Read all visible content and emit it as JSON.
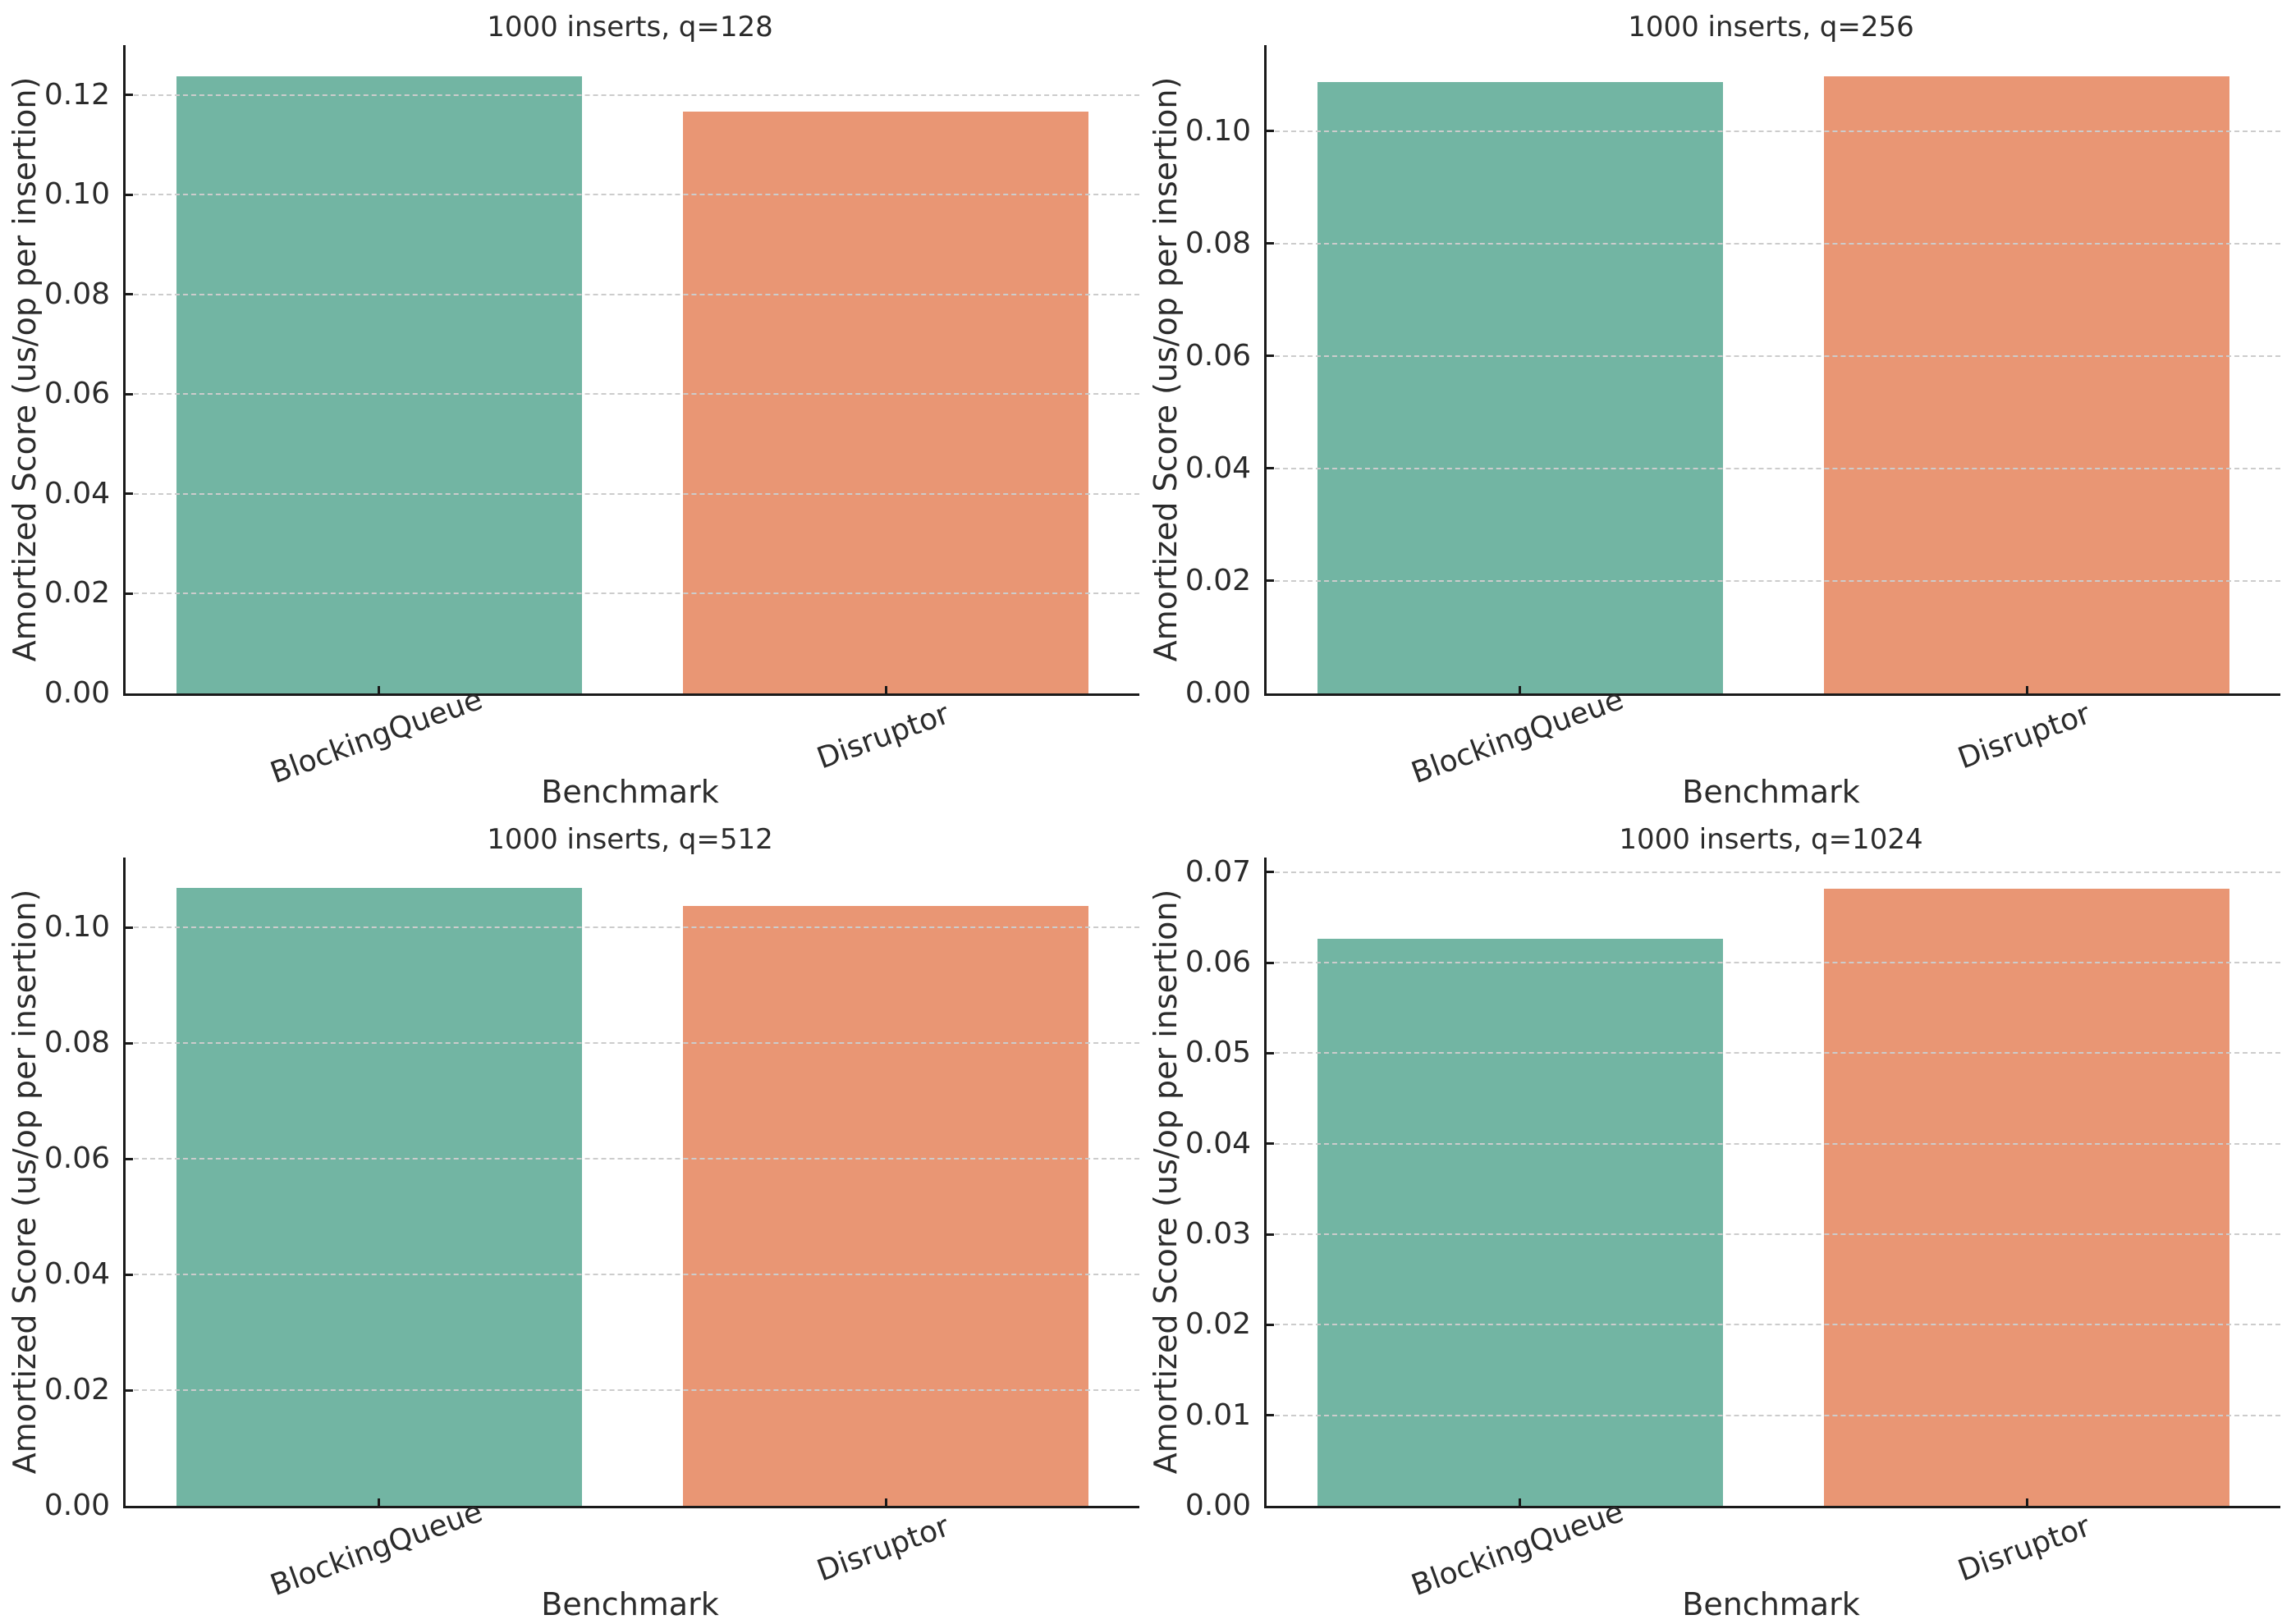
{
  "figure": {
    "background": "#ffffff",
    "layout": "2x2-grid-of-subplots"
  },
  "palette": {
    "series": [
      {
        "name": "BlockingQueue",
        "color": "#72b5a3"
      },
      {
        "name": "Disruptor",
        "color": "#e99674"
      }
    ],
    "grid": "#cccccc",
    "spine": "#1a1a1a",
    "text": "#2b2b2b"
  },
  "chart_data": [
    {
      "type": "bar",
      "title": "1000 inserts, q=128",
      "categories": [
        "BlockingQueue",
        "Disruptor"
      ],
      "values": [
        0.1238,
        0.1167
      ],
      "xlabel": "Benchmark",
      "ylabel": "Amortized Score (us/op per insertion)",
      "yticks": [
        0.0,
        0.02,
        0.04,
        0.06,
        0.08,
        0.1,
        0.12
      ],
      "ytick_labels": [
        "0.00",
        "0.02",
        "0.04",
        "0.06",
        "0.08",
        "0.10",
        "0.12"
      ],
      "ylim": [
        0,
        0.13
      ],
      "grid": "horizontal-dashed-above-bars",
      "legend": "none",
      "bar_width_fraction": 0.4,
      "xtick_rotation_deg": 20
    },
    {
      "type": "bar",
      "title": "1000 inserts, q=256",
      "categories": [
        "BlockingQueue",
        "Disruptor"
      ],
      "values": [
        0.1088,
        0.1098
      ],
      "xlabel": "Benchmark",
      "ylabel": "Amortized Score (us/op per insertion)",
      "yticks": [
        0.0,
        0.02,
        0.04,
        0.06,
        0.08,
        0.1
      ],
      "ytick_labels": [
        "0.00",
        "0.02",
        "0.04",
        "0.06",
        "0.08",
        "0.10"
      ],
      "ylim": [
        0,
        0.1153
      ],
      "grid": "horizontal-dashed-above-bars",
      "legend": "none",
      "bar_width_fraction": 0.4,
      "xtick_rotation_deg": 20
    },
    {
      "type": "bar",
      "title": "1000 inserts, q=512",
      "categories": [
        "BlockingQueue",
        "Disruptor"
      ],
      "values": [
        0.1068,
        0.1037
      ],
      "xlabel": "Benchmark",
      "ylabel": "Amortized Score (us/op per insertion)",
      "yticks": [
        0.0,
        0.02,
        0.04,
        0.06,
        0.08,
        0.1
      ],
      "ytick_labels": [
        "0.00",
        "0.02",
        "0.04",
        "0.06",
        "0.08",
        "0.10"
      ],
      "ylim": [
        0,
        0.1121
      ],
      "grid": "horizontal-dashed-above-bars",
      "legend": "none",
      "bar_width_fraction": 0.4,
      "xtick_rotation_deg": 20
    },
    {
      "type": "bar",
      "title": "1000 inserts, q=1024",
      "categories": [
        "BlockingQueue",
        "Disruptor"
      ],
      "values": [
        0.0626,
        0.0682
      ],
      "xlabel": "Benchmark",
      "ylabel": "Amortized Score (us/op per insertion)",
      "yticks": [
        0.0,
        0.01,
        0.02,
        0.03,
        0.04,
        0.05,
        0.06,
        0.07
      ],
      "ytick_labels": [
        "0.00",
        "0.01",
        "0.02",
        "0.03",
        "0.04",
        "0.05",
        "0.06",
        "0.07"
      ],
      "ylim": [
        0,
        0.0716
      ],
      "grid": "horizontal-dashed-above-bars",
      "legend": "none",
      "bar_width_fraction": 0.4,
      "xtick_rotation_deg": 20
    }
  ]
}
